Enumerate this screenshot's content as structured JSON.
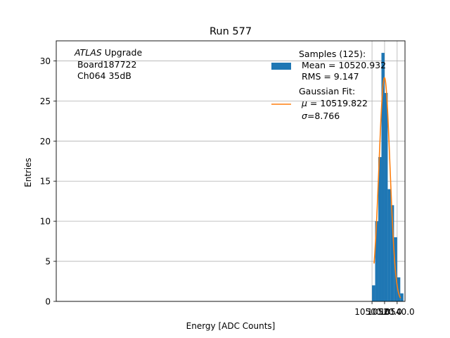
{
  "chart_data": {
    "type": "bar",
    "title": "Run 577",
    "xlabel": "Energy [ADC Counts]",
    "ylabel": "Entries",
    "xlim": [
      9997.5,
      10552.5
    ],
    "ylim": [
      0,
      32.5
    ],
    "xticks": [
      10500.0,
      10520.0,
      10540.0
    ],
    "xtick_labels": [
      "10500.0",
      "10520.0",
      "10540.0"
    ],
    "yticks": [
      0,
      5,
      10,
      15,
      20,
      25,
      30
    ],
    "ytick_labels": [
      "0",
      "5",
      "10",
      "15",
      "20",
      "25",
      "30"
    ],
    "grid": true,
    "bin_edges": [
      10500,
      10505,
      10510,
      10515,
      10520,
      10525,
      10530,
      10535,
      10540,
      10545,
      10550
    ],
    "values": [
      2,
      10,
      18,
      31,
      26,
      14,
      12,
      8,
      3,
      1
    ],
    "bar_color": "#1f77b4",
    "fit": {
      "name": "Gaussian Fit",
      "color": "#ff7f0e",
      "mu": 10519.822,
      "sigma": 8.766,
      "amplitude": 27.9,
      "x_range": [
        10503.3,
        10545.3
      ]
    },
    "annotation": {
      "italic": "ATLAS",
      "rest": " Upgrade",
      "line2": " Board187722",
      "line3": " Ch064 35dB"
    },
    "legend": {
      "placement": "top-right",
      "samples_title": "Samples (125):",
      "samples_mean": " Mean = 10520.932",
      "samples_rms": " RMS = 9.147",
      "fit_title": "Gaussian Fit:",
      "fit_mu": " = 10519.822",
      "fit_sigma": "=8.766"
    }
  }
}
